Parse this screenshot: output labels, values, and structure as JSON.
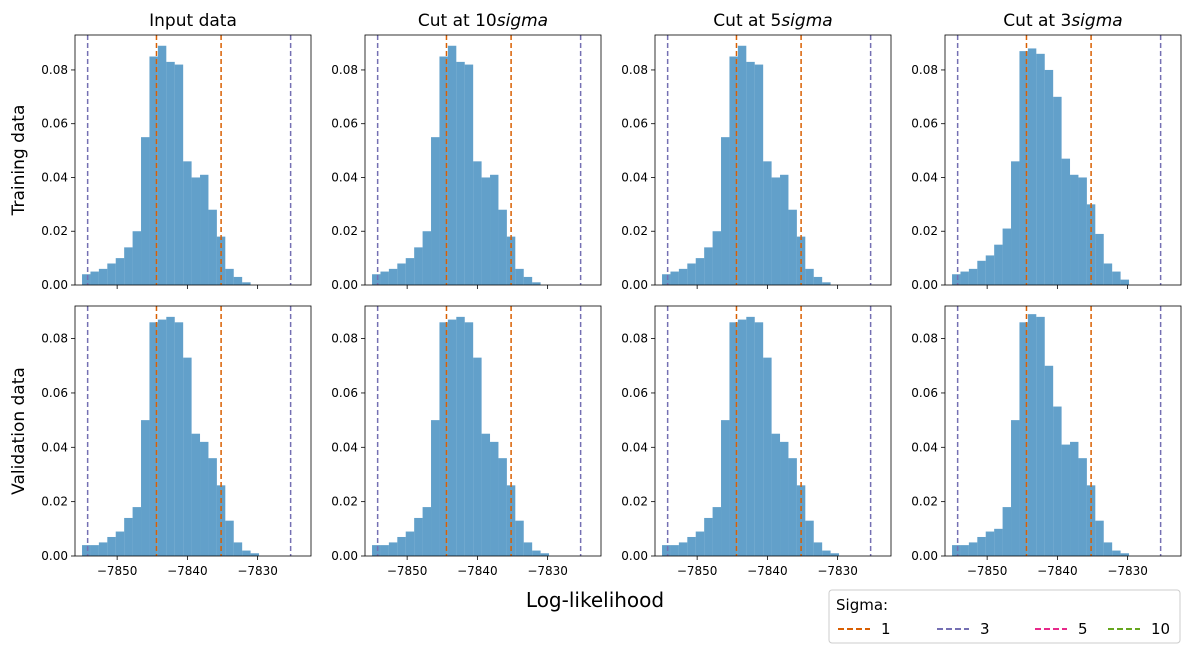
{
  "figure": {
    "xlabel": "Log-likelihood",
    "row_labels": [
      "Training data",
      "Validation data"
    ],
    "legend": {
      "title": "Sigma:",
      "entries": [
        {
          "label": "1",
          "color": "#d95f02"
        },
        {
          "label": "3",
          "color": "#7570b3"
        },
        {
          "label": "5",
          "color": "#e7298a"
        },
        {
          "label": "10",
          "color": "#66a61e"
        }
      ],
      "placement": "lower-right, outside"
    },
    "bar_color": "#1f77b4"
  },
  "chart_data": [
    {
      "type": "bar",
      "title": "Input data",
      "panel": [
        0,
        0
      ],
      "xlim": [
        -7856.0,
        -7822.4
      ],
      "ylim": [
        0,
        0.093
      ],
      "xticks": [
        -7850,
        -7840,
        -7830
      ],
      "xtick_labels": [
        "−7850",
        "−7840",
        "−7830"
      ],
      "yticks": [
        0,
        0.02,
        0.04,
        0.06,
        0.08
      ],
      "ytick_labels": [
        "0.00",
        "0.02",
        "0.04",
        "0.06",
        "0.08"
      ],
      "bin_edges": [
        -7855.0,
        -7853.8,
        -7852.6,
        -7851.4,
        -7850.2,
        -7849.0,
        -7847.8,
        -7846.6,
        -7845.4,
        -7844.2,
        -7843.0,
        -7841.8,
        -7840.6,
        -7839.4,
        -7838.2,
        -7837.0,
        -7835.8,
        -7834.6,
        -7833.4,
        -7832.2,
        -7831.0,
        -7829.8,
        -7828.6,
        -7827.4,
        -7826.2,
        -7825.0,
        -7823.8
      ],
      "values": [
        0.004,
        0.005,
        0.006,
        0.008,
        0.01,
        0.014,
        0.02,
        0.055,
        0.085,
        0.089,
        0.083,
        0.082,
        0.046,
        0.04,
        0.041,
        0.028,
        0.018,
        0.006,
        0.003,
        0.001,
        0.0,
        0.0,
        0.0,
        0.0,
        0.0,
        0.0
      ],
      "vlines": [
        {
          "sigma": "1",
          "x": [
            -7844.4,
            -7835.2
          ]
        },
        {
          "sigma": "3",
          "x": [
            -7854.2,
            -7825.3
          ]
        }
      ]
    },
    {
      "type": "bar",
      "title": "Cut at 10sigma",
      "panel": [
        0,
        1
      ],
      "xlim": [
        -7856.0,
        -7822.4
      ],
      "ylim": [
        0,
        0.093
      ],
      "xticks": [
        -7850,
        -7840,
        -7830
      ],
      "xtick_labels": [
        "−7850",
        "−7840",
        "−7830"
      ],
      "yticks": [
        0,
        0.02,
        0.04,
        0.06,
        0.08
      ],
      "ytick_labels": [
        "0.00",
        "0.02",
        "0.04",
        "0.06",
        "0.08"
      ],
      "bin_edges": [
        -7855.0,
        -7853.8,
        -7852.6,
        -7851.4,
        -7850.2,
        -7849.0,
        -7847.8,
        -7846.6,
        -7845.4,
        -7844.2,
        -7843.0,
        -7841.8,
        -7840.6,
        -7839.4,
        -7838.2,
        -7837.0,
        -7835.8,
        -7834.6,
        -7833.4,
        -7832.2,
        -7831.0,
        -7829.8,
        -7828.6,
        -7827.4,
        -7826.2,
        -7825.0,
        -7823.8
      ],
      "values": [
        0.004,
        0.005,
        0.006,
        0.008,
        0.01,
        0.014,
        0.02,
        0.055,
        0.085,
        0.089,
        0.083,
        0.082,
        0.046,
        0.04,
        0.041,
        0.028,
        0.018,
        0.006,
        0.003,
        0.001,
        0.0,
        0.0,
        0.0,
        0.0,
        0.0,
        0.0
      ],
      "vlines": [
        {
          "sigma": "1",
          "x": [
            -7844.4,
            -7835.2
          ]
        },
        {
          "sigma": "3",
          "x": [
            -7854.2,
            -7825.3
          ]
        }
      ]
    },
    {
      "type": "bar",
      "title": "Cut at 5sigma",
      "panel": [
        0,
        2
      ],
      "xlim": [
        -7856.0,
        -7822.4
      ],
      "ylim": [
        0,
        0.093
      ],
      "xticks": [
        -7850,
        -7840,
        -7830
      ],
      "xtick_labels": [
        "−7850",
        "−7840",
        "−7830"
      ],
      "yticks": [
        0,
        0.02,
        0.04,
        0.06,
        0.08
      ],
      "ytick_labels": [
        "0.00",
        "0.02",
        "0.04",
        "0.06",
        "0.08"
      ],
      "bin_edges": [
        -7855.0,
        -7853.8,
        -7852.6,
        -7851.4,
        -7850.2,
        -7849.0,
        -7847.8,
        -7846.6,
        -7845.4,
        -7844.2,
        -7843.0,
        -7841.8,
        -7840.6,
        -7839.4,
        -7838.2,
        -7837.0,
        -7835.8,
        -7834.6,
        -7833.4,
        -7832.2,
        -7831.0,
        -7829.8,
        -7828.6,
        -7827.4,
        -7826.2,
        -7825.0
      ],
      "values": [
        0.004,
        0.005,
        0.006,
        0.008,
        0.01,
        0.014,
        0.02,
        0.055,
        0.085,
        0.089,
        0.083,
        0.082,
        0.046,
        0.04,
        0.041,
        0.028,
        0.018,
        0.006,
        0.003,
        0.001,
        0.0,
        0.0,
        0.0,
        0.0,
        0.0
      ],
      "vlines": [
        {
          "sigma": "1",
          "x": [
            -7844.4,
            -7835.2
          ]
        },
        {
          "sigma": "3",
          "x": [
            -7854.2,
            -7825.3
          ]
        }
      ]
    },
    {
      "type": "bar",
      "title": "Cut at 3sigma",
      "panel": [
        0,
        3
      ],
      "xlim": [
        -7856.0,
        -7822.4
      ],
      "ylim": [
        0,
        0.093
      ],
      "xticks": [
        -7850,
        -7840,
        -7830
      ],
      "xtick_labels": [
        "−7850",
        "−7840",
        "−7830"
      ],
      "yticks": [
        0,
        0.02,
        0.04,
        0.06,
        0.08
      ],
      "ytick_labels": [
        "0.00",
        "0.02",
        "0.04",
        "0.06",
        "0.08"
      ],
      "bin_edges": [
        -7855.0,
        -7853.8,
        -7852.6,
        -7851.4,
        -7850.2,
        -7849.0,
        -7847.8,
        -7846.6,
        -7845.4,
        -7844.2,
        -7843.0,
        -7841.8,
        -7840.6,
        -7839.4,
        -7838.2,
        -7837.0,
        -7835.8,
        -7834.6,
        -7833.4,
        -7832.2,
        -7831.0,
        -7829.8,
        -7828.6,
        -7827.4,
        -7826.2,
        -7825.0
      ],
      "values": [
        0.004,
        0.005,
        0.006,
        0.009,
        0.011,
        0.015,
        0.021,
        0.046,
        0.087,
        0.088,
        0.086,
        0.08,
        0.07,
        0.047,
        0.041,
        0.04,
        0.03,
        0.019,
        0.008,
        0.005,
        0.002,
        0.0,
        0.0,
        0.0,
        0.0
      ],
      "vlines": [
        {
          "sigma": "1",
          "x": [
            -7844.4,
            -7835.2
          ]
        },
        {
          "sigma": "3",
          "x": [
            -7854.2,
            -7825.3
          ]
        }
      ]
    },
    {
      "type": "bar",
      "title": "",
      "panel": [
        1,
        0
      ],
      "xlim": [
        -7856.0,
        -7822.4
      ],
      "ylim": [
        0,
        0.092
      ],
      "xticks": [
        -7850,
        -7840,
        -7830
      ],
      "xtick_labels": [
        "−7850",
        "−7840",
        "−7830"
      ],
      "yticks": [
        0,
        0.02,
        0.04,
        0.06,
        0.08
      ],
      "ytick_labels": [
        "0.00",
        "0.02",
        "0.04",
        "0.06",
        "0.08"
      ],
      "bin_edges": [
        -7855.0,
        -7853.8,
        -7852.6,
        -7851.4,
        -7850.2,
        -7849.0,
        -7847.8,
        -7846.6,
        -7845.4,
        -7844.2,
        -7843.0,
        -7841.8,
        -7840.6,
        -7839.4,
        -7838.2,
        -7837.0,
        -7835.8,
        -7834.6,
        -7833.4,
        -7832.2,
        -7831.0,
        -7829.8,
        -7828.6,
        -7827.4,
        -7826.2,
        -7825.0,
        -7823.8
      ],
      "values": [
        0.004,
        0.004,
        0.005,
        0.007,
        0.009,
        0.014,
        0.018,
        0.05,
        0.086,
        0.087,
        0.088,
        0.086,
        0.073,
        0.045,
        0.042,
        0.036,
        0.026,
        0.013,
        0.005,
        0.002,
        0.001,
        0.0,
        0.0,
        0.0,
        0.0,
        0.0
      ],
      "vlines": [
        {
          "sigma": "1",
          "x": [
            -7844.4,
            -7835.2
          ]
        },
        {
          "sigma": "3",
          "x": [
            -7854.2,
            -7825.3
          ]
        }
      ]
    },
    {
      "type": "bar",
      "title": "",
      "panel": [
        1,
        1
      ],
      "xlim": [
        -7856.0,
        -7822.4
      ],
      "ylim": [
        0,
        0.092
      ],
      "xticks": [
        -7850,
        -7840,
        -7830
      ],
      "xtick_labels": [
        "−7850",
        "−7840",
        "−7830"
      ],
      "yticks": [
        0,
        0.02,
        0.04,
        0.06,
        0.08
      ],
      "ytick_labels": [
        "0.00",
        "0.02",
        "0.04",
        "0.06",
        "0.08"
      ],
      "bin_edges": [
        -7855.0,
        -7853.8,
        -7852.6,
        -7851.4,
        -7850.2,
        -7849.0,
        -7847.8,
        -7846.6,
        -7845.4,
        -7844.2,
        -7843.0,
        -7841.8,
        -7840.6,
        -7839.4,
        -7838.2,
        -7837.0,
        -7835.8,
        -7834.6,
        -7833.4,
        -7832.2,
        -7831.0,
        -7829.8,
        -7828.6,
        -7827.4,
        -7826.2,
        -7825.0,
        -7823.8
      ],
      "values": [
        0.004,
        0.004,
        0.005,
        0.007,
        0.009,
        0.014,
        0.018,
        0.05,
        0.086,
        0.087,
        0.088,
        0.086,
        0.073,
        0.045,
        0.042,
        0.036,
        0.026,
        0.013,
        0.005,
        0.002,
        0.001,
        0.0,
        0.0,
        0.0,
        0.0,
        0.0
      ],
      "vlines": [
        {
          "sigma": "1",
          "x": [
            -7844.4,
            -7835.2
          ]
        },
        {
          "sigma": "3",
          "x": [
            -7854.2,
            -7825.3
          ]
        }
      ]
    },
    {
      "type": "bar",
      "title": "",
      "panel": [
        1,
        2
      ],
      "xlim": [
        -7856.0,
        -7822.4
      ],
      "ylim": [
        0,
        0.092
      ],
      "xticks": [
        -7850,
        -7840,
        -7830
      ],
      "xtick_labels": [
        "−7850",
        "−7840",
        "−7830"
      ],
      "yticks": [
        0,
        0.02,
        0.04,
        0.06,
        0.08
      ],
      "ytick_labels": [
        "0.00",
        "0.02",
        "0.04",
        "0.06",
        "0.08"
      ],
      "bin_edges": [
        -7855.0,
        -7853.8,
        -7852.6,
        -7851.4,
        -7850.2,
        -7849.0,
        -7847.8,
        -7846.6,
        -7845.4,
        -7844.2,
        -7843.0,
        -7841.8,
        -7840.6,
        -7839.4,
        -7838.2,
        -7837.0,
        -7835.8,
        -7834.6,
        -7833.4,
        -7832.2,
        -7831.0,
        -7829.8,
        -7828.6,
        -7827.4,
        -7826.2,
        -7825.0,
        -7823.8
      ],
      "values": [
        0.004,
        0.004,
        0.005,
        0.007,
        0.009,
        0.014,
        0.018,
        0.05,
        0.086,
        0.087,
        0.088,
        0.086,
        0.073,
        0.045,
        0.042,
        0.036,
        0.026,
        0.013,
        0.005,
        0.002,
        0.001,
        0.0,
        0.0,
        0.0,
        0.0,
        0.0
      ],
      "vlines": [
        {
          "sigma": "1",
          "x": [
            -7844.4,
            -7835.2
          ]
        },
        {
          "sigma": "3",
          "x": [
            -7854.2,
            -7825.3
          ]
        }
      ]
    },
    {
      "type": "bar",
      "title": "",
      "panel": [
        1,
        3
      ],
      "xlim": [
        -7856.0,
        -7822.4
      ],
      "ylim": [
        0,
        0.092
      ],
      "xticks": [
        -7850,
        -7840,
        -7830
      ],
      "xtick_labels": [
        "−7850",
        "−7840",
        "−7830"
      ],
      "yticks": [
        0,
        0.02,
        0.04,
        0.06,
        0.08
      ],
      "ytick_labels": [
        "0.00",
        "0.02",
        "0.04",
        "0.06",
        "0.08"
      ],
      "bin_edges": [
        -7855.0,
        -7853.8,
        -7852.6,
        -7851.4,
        -7850.2,
        -7849.0,
        -7847.8,
        -7846.6,
        -7845.4,
        -7844.2,
        -7843.0,
        -7841.8,
        -7840.6,
        -7839.4,
        -7838.2,
        -7837.0,
        -7835.8,
        -7834.6,
        -7833.4,
        -7832.2,
        -7831.0,
        -7829.8,
        -7828.6,
        -7827.4,
        -7826.2,
        -7825.0
      ],
      "values": [
        0.004,
        0.004,
        0.005,
        0.007,
        0.009,
        0.01,
        0.018,
        0.05,
        0.086,
        0.089,
        0.088,
        0.07,
        0.055,
        0.041,
        0.042,
        0.036,
        0.026,
        0.013,
        0.005,
        0.002,
        0.001,
        0.0,
        0.0,
        0.0,
        0.0
      ],
      "vlines": [
        {
          "sigma": "1",
          "x": [
            -7844.4,
            -7835.2
          ]
        },
        {
          "sigma": "3",
          "x": [
            -7854.2,
            -7825.3
          ]
        }
      ]
    }
  ]
}
